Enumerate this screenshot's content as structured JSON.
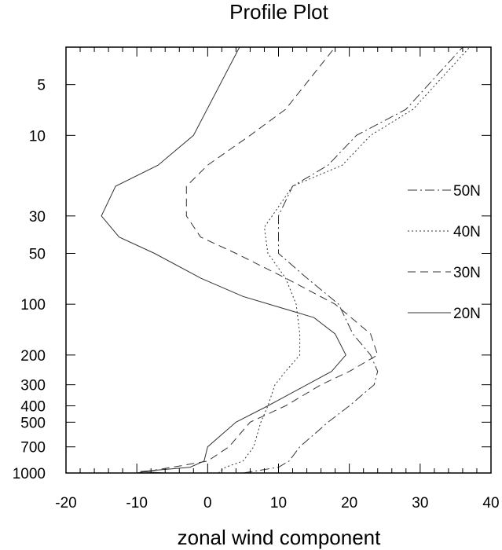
{
  "chart_data": {
    "type": "line",
    "title": "Profile Plot",
    "xlabel": "zonal wind component",
    "ylabel": "",
    "xlim": [
      -20,
      40
    ],
    "ylim": [
      1000,
      3
    ],
    "y_scale": "log",
    "y_reversed": true,
    "grid": false,
    "legend_position": "right",
    "x_ticks": [
      -20,
      -10,
      0,
      10,
      20,
      30,
      40
    ],
    "x_tick_labels": [
      "-20",
      "-10",
      "0",
      "10",
      "20",
      "30",
      "40"
    ],
    "y_ticks": [
      5,
      10,
      30,
      50,
      100,
      200,
      300,
      400,
      500,
      700,
      1000
    ],
    "y_tick_labels": [
      "5",
      "10",
      "30",
      "50",
      "100",
      "200",
      "300",
      "400",
      "500",
      "700",
      "1000"
    ],
    "series": [
      {
        "name": "50N",
        "dash": "12,4,2,4",
        "points": [
          [
            5,
            1000
          ],
          [
            10,
            925
          ],
          [
            11.5,
            850
          ],
          [
            13,
            700
          ],
          [
            17,
            500
          ],
          [
            20,
            400
          ],
          [
            23.5,
            300
          ],
          [
            24,
            250
          ],
          [
            23,
            200
          ],
          [
            20.5,
            150
          ],
          [
            18.5,
            100
          ],
          [
            14,
            70
          ],
          [
            10,
            50
          ],
          [
            10,
            30
          ],
          [
            12,
            20
          ],
          [
            17,
            15
          ],
          [
            21,
            10
          ],
          [
            28,
            7
          ],
          [
            36,
            3
          ]
        ]
      },
      {
        "name": "40N",
        "dash": "2,3",
        "points": [
          [
            1.5,
            1000
          ],
          [
            2.5,
            925
          ],
          [
            5,
            850
          ],
          [
            6.5,
            700
          ],
          [
            7.5,
            500
          ],
          [
            8.5,
            400
          ],
          [
            9.5,
            300
          ],
          [
            11,
            250
          ],
          [
            13,
            200
          ],
          [
            13,
            150
          ],
          [
            12.5,
            100
          ],
          [
            11,
            70
          ],
          [
            8.5,
            50
          ],
          [
            8,
            35
          ],
          [
            12,
            20
          ],
          [
            19,
            15
          ],
          [
            23,
            10
          ],
          [
            29,
            7
          ],
          [
            37,
            3
          ]
        ]
      },
      {
        "name": "30N",
        "dash": "10,6",
        "points": [
          [
            -10,
            1000
          ],
          [
            -5,
            925
          ],
          [
            0,
            850
          ],
          [
            3,
            700
          ],
          [
            6,
            500
          ],
          [
            11,
            400
          ],
          [
            16,
            300
          ],
          [
            20,
            250
          ],
          [
            24,
            200
          ],
          [
            23,
            150
          ],
          [
            18,
            100
          ],
          [
            11,
            70
          ],
          [
            4,
            50
          ],
          [
            -1,
            40
          ],
          [
            -3,
            30
          ],
          [
            -3,
            20
          ],
          [
            0,
            15
          ],
          [
            6,
            10
          ],
          [
            11,
            7
          ],
          [
            18,
            3
          ]
        ]
      },
      {
        "name": "20N",
        "dash": "",
        "points": [
          [
            -6,
            1000
          ],
          [
            -9.5,
            980
          ],
          [
            -2.5,
            925
          ],
          [
            -0.5,
            850
          ],
          [
            0,
            700
          ],
          [
            4,
            500
          ],
          [
            8.5,
            400
          ],
          [
            14,
            300
          ],
          [
            17.5,
            250
          ],
          [
            19.5,
            200
          ],
          [
            18,
            150
          ],
          [
            15,
            120
          ],
          [
            5,
            90
          ],
          [
            -1,
            70
          ],
          [
            -7.5,
            50
          ],
          [
            -12.5,
            40
          ],
          [
            -15,
            30
          ],
          [
            -13,
            20
          ],
          [
            -7,
            15
          ],
          [
            -2,
            10
          ],
          [
            4.5,
            3
          ]
        ]
      }
    ]
  }
}
